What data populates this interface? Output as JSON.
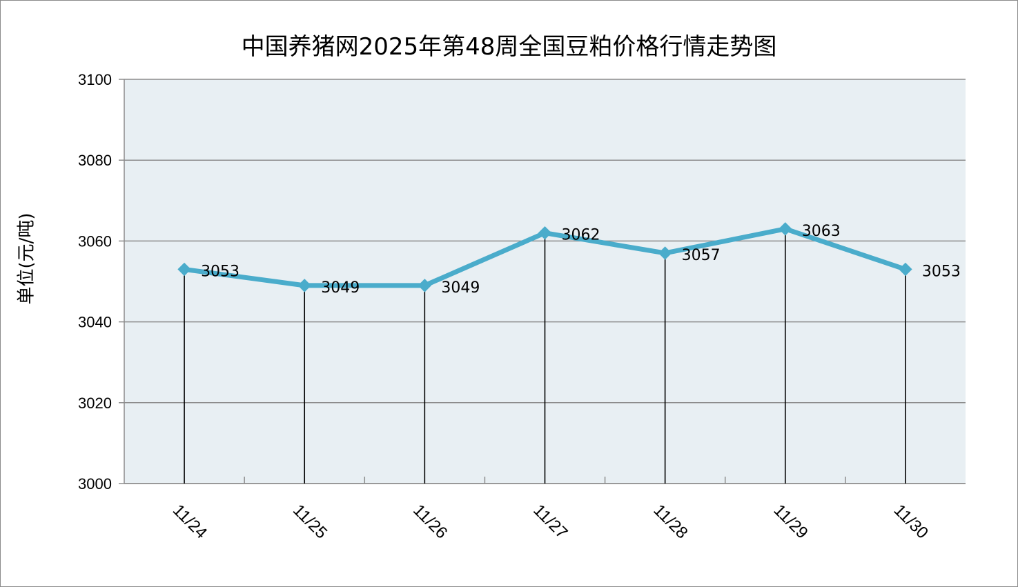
{
  "chart_data": {
    "type": "line",
    "title": "中国养猪网2025年第48周全国豆粕价格行情走势图",
    "xlabel": "",
    "ylabel": "单位(元/吨)",
    "categories": [
      "11/24",
      "11/25",
      "11/26",
      "11/27",
      "11/28",
      "11/29",
      "11/30"
    ],
    "series": [
      {
        "values": [
          3053,
          3049,
          3049,
          3062,
          3057,
          3063,
          3053
        ]
      }
    ],
    "ylim": [
      3000,
      3100
    ],
    "yticks": [
      3000,
      3020,
      3040,
      3060,
      3080,
      3100
    ],
    "grid": true,
    "drop_lines": true,
    "data_labels": true,
    "colors": {
      "line": "#4aaccb",
      "plot_background": "#e8eff3",
      "grid": "#8c8c8c"
    }
  }
}
